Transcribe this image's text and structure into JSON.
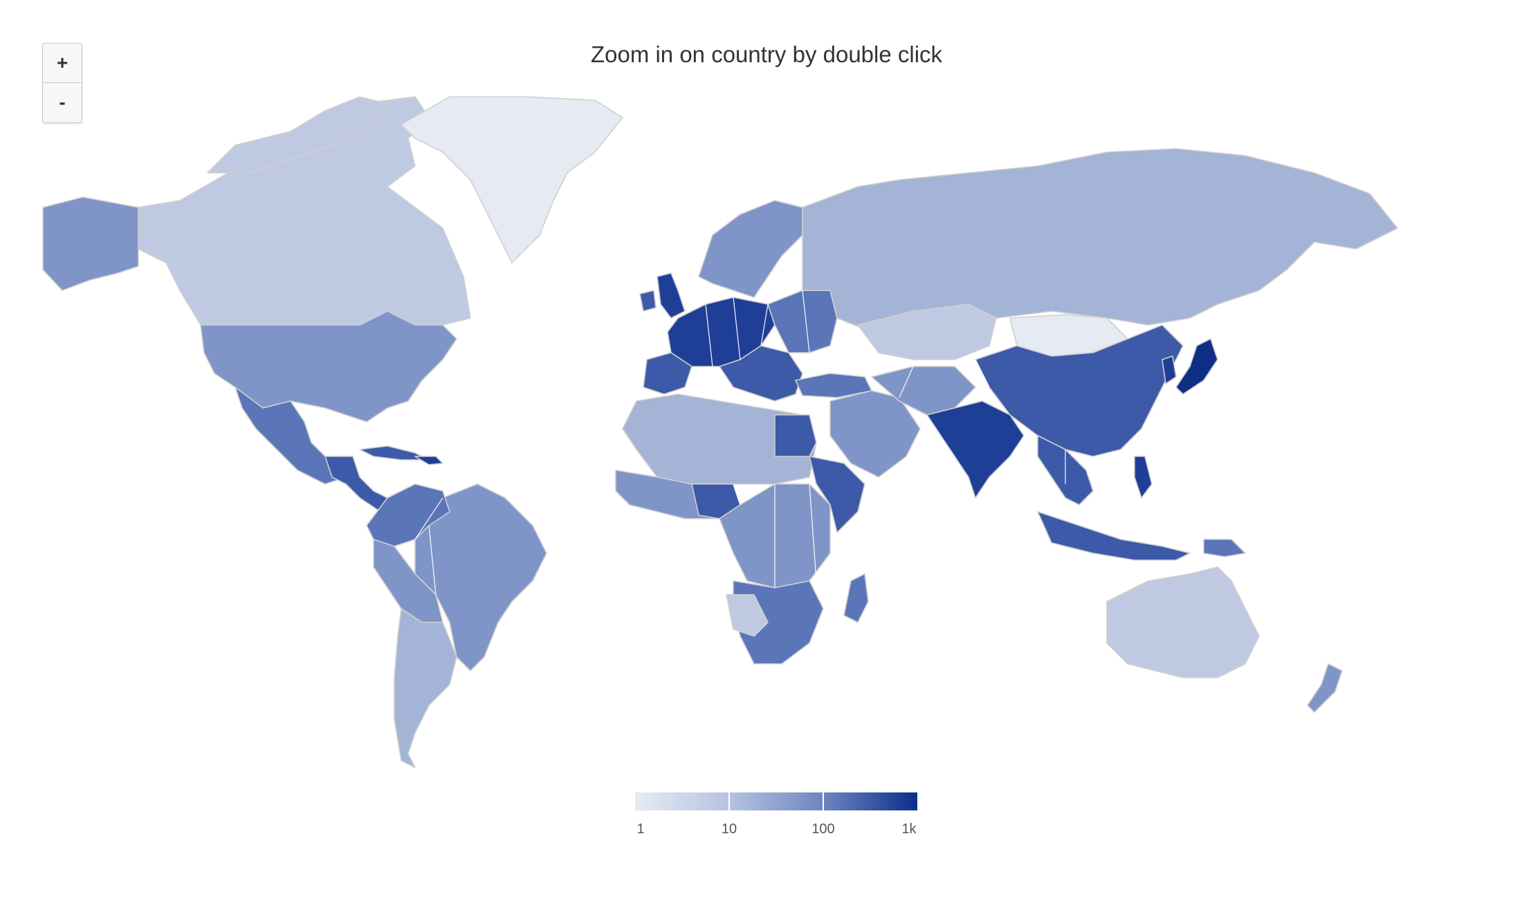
{
  "title": "Zoom in on country by double click",
  "zoom_controls": {
    "zoom_in_label": "+",
    "zoom_out_label": "-"
  },
  "legend": {
    "ticks": [
      "1",
      "10",
      "100",
      "1k"
    ],
    "color_min": "#e6ebf5",
    "color_max": "#0b2f8a",
    "scale": "logarithmic"
  },
  "colors": {
    "very_light": "#e6eaf3",
    "light": "#bfcae2",
    "light_mid": "#a4b4d6",
    "mid": "#7f95c8",
    "mid_dark": "#5b75b9",
    "dark": "#3d5aa9",
    "very_dark": "#1f3f97",
    "darkest": "#0f2f86"
  }
}
